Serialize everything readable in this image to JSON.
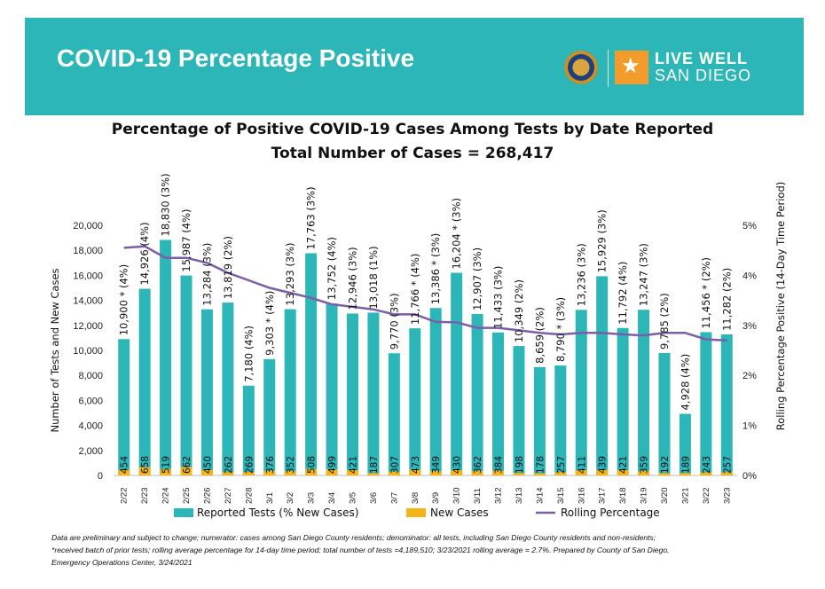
{
  "banner": {
    "title": "COVID-19 Percentage Positive",
    "logo_text_1": "LIVE WELL",
    "logo_text_2": "SAN DIEGO",
    "colors": {
      "banner": "#2cb6b8",
      "logo_accent": "#f39c2b"
    }
  },
  "chart_data": {
    "type": "bar",
    "title": "Percentage of Positive COVID-19 Cases Among Tests by Date Reported",
    "subtitle": "Total Number of Cases = 268,417",
    "ylabel": "Number of Tests and New Cases",
    "y2label": "Rolling Percentage Positive (14-Day Time Period)",
    "ylim": [
      0,
      20000
    ],
    "yticks": [
      "0",
      "2,000",
      "4,000",
      "6,000",
      "8,000",
      "10,000",
      "12,000",
      "14,000",
      "16,000",
      "18,000",
      "20,000"
    ],
    "y2lim": [
      0,
      5
    ],
    "y2ticks": [
      "0%",
      "1%",
      "2%",
      "3%",
      "4%",
      "5%"
    ],
    "categories": [
      "2/22",
      "2/23",
      "2/24",
      "2/25",
      "2/26",
      "2/27",
      "2/28",
      "3/1",
      "3/2",
      "3/3",
      "3/4",
      "3/5",
      "3/6",
      "3/7",
      "3/8",
      "3/9",
      "3/10",
      "3/11",
      "3/12",
      "3/13",
      "3/14",
      "3/15",
      "3/16",
      "3/17",
      "3/18",
      "3/19",
      "3/20",
      "3/21",
      "3/22",
      "3/23"
    ],
    "series": [
      {
        "name": "Reported Tests (% New Cases)",
        "type": "bar",
        "color": "#2cb6b8",
        "values": [
          10900,
          14926,
          18830,
          15987,
          13284,
          13819,
          7180,
          9303,
          13293,
          17763,
          13752,
          12946,
          13018,
          9770,
          11766,
          13386,
          16204,
          12907,
          11433,
          10349,
          8659,
          8790,
          13236,
          15929,
          11792,
          13247,
          9785,
          4928,
          11456,
          11282
        ],
        "labels": [
          "10,900 * (4%)",
          "14,926 (4%)",
          "18,830 (3%)",
          "15,987 (4%)",
          "13,284 (3%)",
          "13,819 (2%)",
          "7,180 (4%)",
          "9,303 * (4%)",
          "13,293 (3%)",
          "17,763 (3%)",
          "13,752 (4%)",
          "12,946 (3%)",
          "13,018 (1%)",
          "9,770 (3%)",
          "11,766 * (4%)",
          "13,386 * (3%)",
          "16,204 * (3%)",
          "12,907 (3%)",
          "11,433 (3%)",
          "10,349 (2%)",
          "8,659 (2%)",
          "8,790 * (3%)",
          "13,236 (3%)",
          "15,929 (3%)",
          "11,792 (4%)",
          "13,247 (3%)",
          "9,785 (2%)",
          "4,928 (4%)",
          "11,456 * (2%)",
          "11,282 (2%)"
        ]
      },
      {
        "name": "New Cases",
        "type": "bar",
        "color": "#f5b41a",
        "values": [
          454,
          658,
          519,
          662,
          450,
          262,
          269,
          376,
          352,
          508,
          499,
          421,
          187,
          307,
          473,
          349,
          430,
          362,
          384,
          198,
          178,
          257,
          411,
          439,
          421,
          359,
          192,
          189,
          243,
          257
        ],
        "labels": [
          "454",
          "658",
          "519",
          "662",
          "450",
          "262",
          "269",
          "376",
          "352",
          "508",
          "499",
          "421",
          "187",
          "307",
          "473",
          "349",
          "430",
          "362",
          "384",
          "198",
          "178",
          "257",
          "411",
          "439",
          "421",
          "359",
          "192",
          "189",
          "243",
          "257"
        ]
      },
      {
        "name": "Rolling Percentage",
        "type": "line",
        "axis": "right",
        "color": "#7b5ea7",
        "values": [
          4.55,
          4.58,
          4.35,
          4.35,
          4.25,
          4.05,
          3.9,
          3.75,
          3.65,
          3.55,
          3.42,
          3.37,
          3.32,
          3.22,
          3.22,
          3.07,
          3.06,
          2.95,
          2.95,
          2.9,
          2.85,
          2.82,
          2.85,
          2.85,
          2.82,
          2.8,
          2.85,
          2.85,
          2.72,
          2.7
        ]
      }
    ],
    "legend": "bottom"
  },
  "footnote": {
    "line1": "Data are preliminary and subject to change; numerator: cases among San Diego County residents; denominator: all tests, including San Diego County residents and non-residents;",
    "line2": "*received batch of prior tests; rolling average percentage for 14-day time period; total number of tests =4,189,510; 3/23/2021 rolling average = 2.7%. Prepared by County of San Diego,",
    "line3": "Emergency Operations Center, 3/24/2021"
  }
}
